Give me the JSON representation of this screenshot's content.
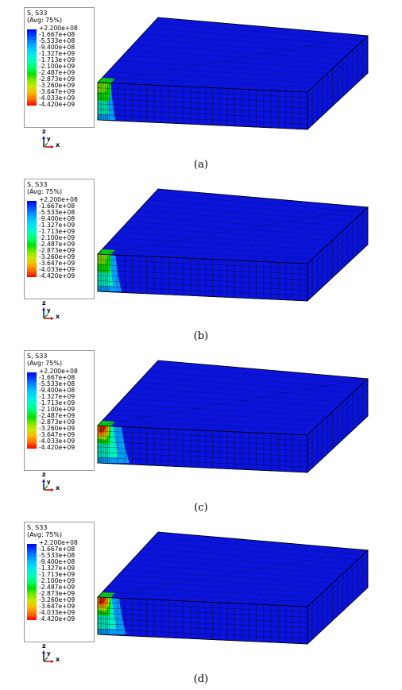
{
  "legend": {
    "title": "S, S33",
    "subtitle": "(Avg: 75%)",
    "values": [
      "+2.200e+08",
      "-1.667e+08",
      "-5.533e+08",
      "-9.400e+08",
      "-1.327e+09",
      "-1.713e+09",
      "-2.100e+09",
      "-2.487e+09",
      "-2.873e+09",
      "-3.260e+09",
      "-3.647e+09",
      "-4.033e+09",
      "-4.420e+09"
    ],
    "colors": [
      "#0000ff",
      "#0048ff",
      "#0090ff",
      "#00c8ff",
      "#00eaea",
      "#00ffb4",
      "#00ff6e",
      "#00e100",
      "#7ee800",
      "#c8e800",
      "#ffb400",
      "#ff6e00",
      "#ff0000"
    ]
  },
  "axes": {
    "z": "z",
    "y": "y",
    "x": "x"
  },
  "panels": [
    {
      "caption": "(a)"
    },
    {
      "caption": "(b)"
    },
    {
      "caption": "(c)"
    },
    {
      "caption": "(d)"
    }
  ]
}
